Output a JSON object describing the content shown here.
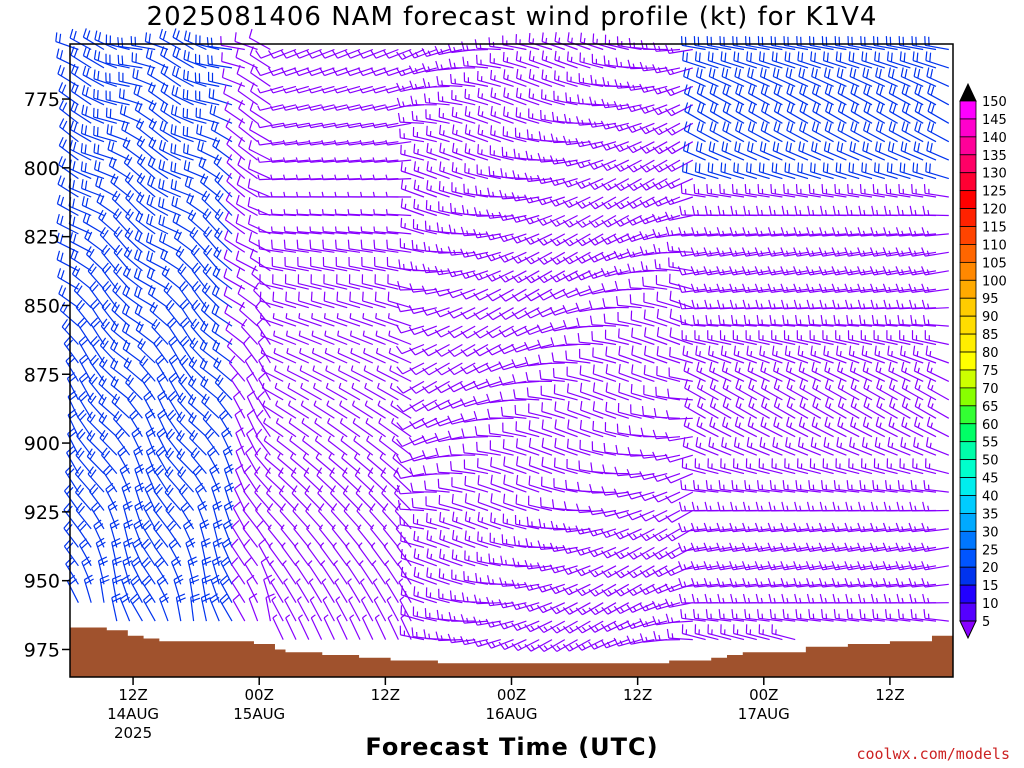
{
  "title": "2025081406 NAM forecast wind profile (kt) for K1V4",
  "xlabel": "Forecast Time (UTC)",
  "credit": "coolwx.com/models",
  "chart_data": {
    "type": "wind-barb-time-height",
    "y_axis": {
      "ticks": [
        775,
        800,
        825,
        850,
        875,
        900,
        925,
        950,
        975
      ],
      "inverted": true,
      "range": [
        755,
        985
      ]
    },
    "x_axis": {
      "range_hours": [
        0,
        84
      ],
      "ticks": [
        {
          "hour": 6,
          "label": "12Z",
          "sublabel": "14AUG",
          "sublabel2": "2025"
        },
        {
          "hour": 18,
          "label": "00Z",
          "sublabel": "15AUG"
        },
        {
          "hour": 30,
          "label": "12Z"
        },
        {
          "hour": 42,
          "label": "00Z",
          "sublabel": "16AUG"
        },
        {
          "hour": 54,
          "label": "12Z"
        },
        {
          "hour": 66,
          "label": "00Z",
          "sublabel": "17AUG"
        },
        {
          "hour": 78,
          "label": "12Z"
        }
      ]
    },
    "colorbar": {
      "values": [
        "150",
        "145",
        "140",
        "135",
        "130",
        "125",
        "120",
        "115",
        "110",
        "105",
        "100",
        "95",
        "90",
        "85",
        "80",
        "75",
        "70",
        "65",
        "60",
        "55",
        "50",
        "45",
        "40",
        "35",
        "30",
        "25",
        "20",
        "15",
        "10",
        "5"
      ],
      "colors": [
        "#ff00ff",
        "#ff00cc",
        "#ff0099",
        "#ff0066",
        "#ff0033",
        "#ff0000",
        "#ff2200",
        "#ff4400",
        "#ff6600",
        "#ff8800",
        "#ffaa00",
        "#ffcc00",
        "#ffdd00",
        "#ffee00",
        "#ffff00",
        "#ccff00",
        "#88ff00",
        "#33ff33",
        "#00ff66",
        "#00ffaa",
        "#00ffcc",
        "#00eeee",
        "#00ccff",
        "#00aaff",
        "#0077ff",
        "#0055ff",
        "#0033ee",
        "#2200ff",
        "#5500ff",
        "#8800ff"
      ],
      "top_arrow_color": "#000000"
    },
    "surface_pressure": [
      {
        "hour": 0,
        "p": 967
      },
      {
        "hour": 3.5,
        "p": 968
      },
      {
        "hour": 5.5,
        "p": 970
      },
      {
        "hour": 7,
        "p": 971
      },
      {
        "hour": 8.5,
        "p": 972
      },
      {
        "hour": 15.5,
        "p": 972
      },
      {
        "hour": 17.5,
        "p": 973
      },
      {
        "hour": 19.5,
        "p": 975
      },
      {
        "hour": 20.5,
        "p": 976
      },
      {
        "hour": 24,
        "p": 977
      },
      {
        "hour": 27.5,
        "p": 978
      },
      {
        "hour": 30.5,
        "p": 979
      },
      {
        "hour": 35,
        "p": 980
      },
      {
        "hour": 56,
        "p": 980
      },
      {
        "hour": 57,
        "p": 979
      },
      {
        "hour": 61,
        "p": 978
      },
      {
        "hour": 62.5,
        "p": 977
      },
      {
        "hour": 64,
        "p": 976
      },
      {
        "hour": 69,
        "p": 976
      },
      {
        "hour": 70,
        "p": 974
      },
      {
        "hour": 74,
        "p": 973
      },
      {
        "hour": 78,
        "p": 972
      },
      {
        "hour": 82,
        "p": 970
      },
      {
        "hour": 84,
        "p": 969
      }
    ],
    "surface_color": "#a0522d",
    "barb_color_light": "#8800ff",
    "barb_color_strong": "#0033ee"
  }
}
